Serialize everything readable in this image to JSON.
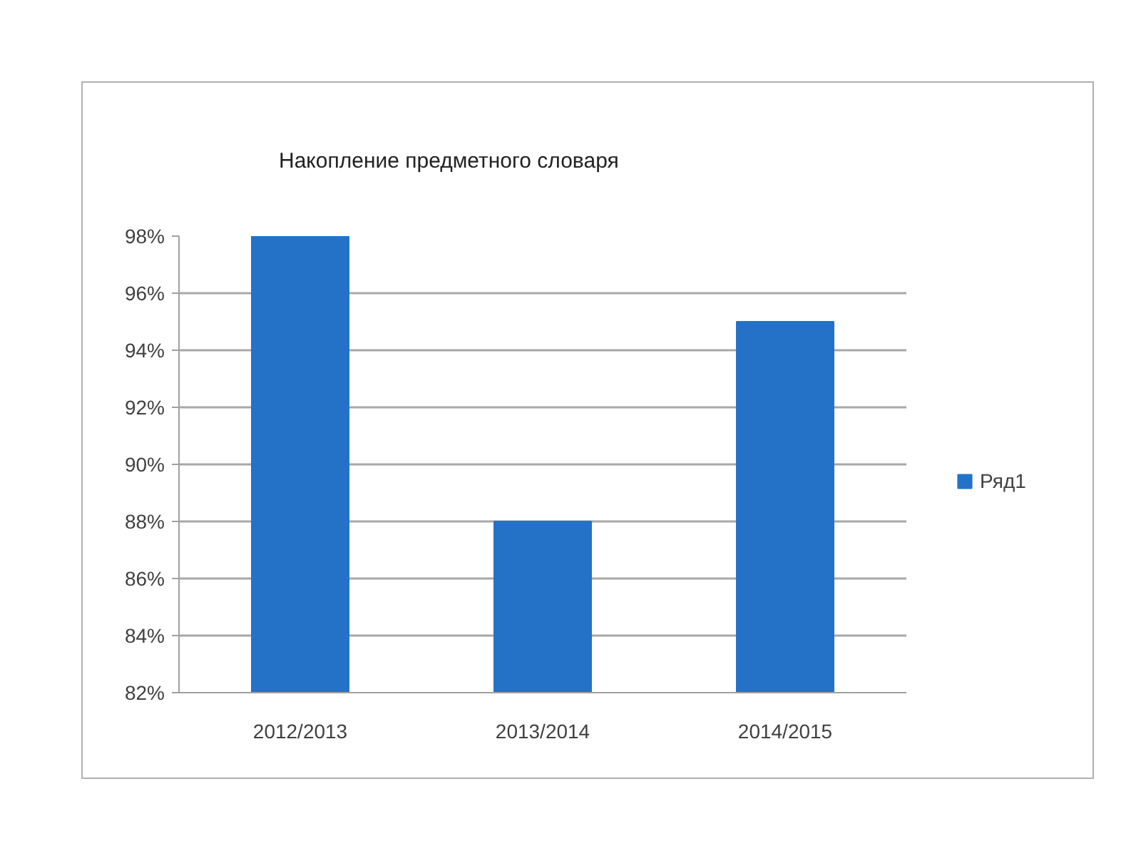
{
  "chart_data": {
    "type": "bar",
    "title": "Накопление предметного словаря",
    "categories": [
      "2012/2013",
      "2013/2014",
      "2014/2015"
    ],
    "series": [
      {
        "name": "Ряд1",
        "color": "#2472c8",
        "values": [
          98,
          88,
          95
        ]
      }
    ],
    "ylim": [
      82,
      98
    ],
    "yticks": [
      {
        "value": 82,
        "label": "82%"
      },
      {
        "value": 84,
        "label": "84%"
      },
      {
        "value": 86,
        "label": "86%"
      },
      {
        "value": 88,
        "label": "88%"
      },
      {
        "value": 90,
        "label": "90%"
      },
      {
        "value": 92,
        "label": "92%"
      },
      {
        "value": 94,
        "label": "94%"
      },
      {
        "value": 96,
        "label": "96%"
      },
      {
        "value": 98,
        "label": "98%"
      }
    ],
    "grid": "y",
    "legend": "right"
  }
}
